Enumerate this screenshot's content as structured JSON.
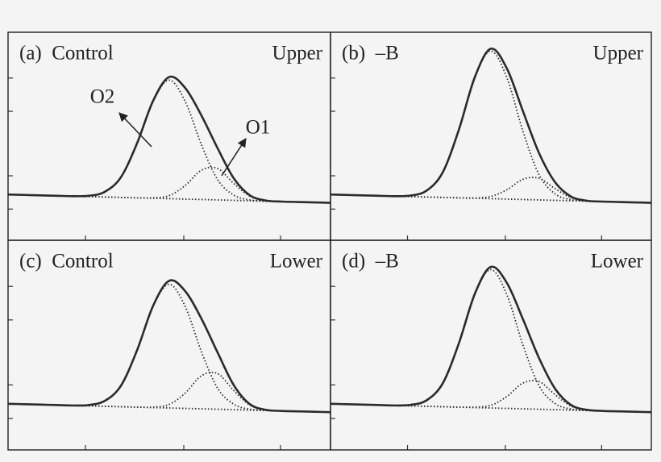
{
  "chart_data": [
    {
      "type": "line",
      "label": "(a)  Control",
      "position": "Upper",
      "annotations": [
        "O2",
        "O1"
      ],
      "x": [
        0,
        5,
        10,
        15,
        20,
        25,
        30,
        35,
        40,
        45,
        50,
        55,
        60,
        65,
        70,
        75,
        80,
        85,
        90,
        95,
        100
      ],
      "xlim": [
        0,
        100
      ],
      "ylim": [
        0,
        100
      ],
      "xticks": [
        24,
        54.5,
        84.5
      ],
      "yticks": [
        15,
        31,
        62,
        78
      ],
      "series": [
        {
          "color": "#2a2a2a",
          "style": "solid",
          "values": [
            22,
            21.8,
            21.6,
            21.4,
            21.2,
            21.4,
            23.3,
            30.3,
            46.6,
            67.1,
            78.5,
            73.1,
            59.9,
            44.2,
            29.8,
            21.6,
            19.1,
            18.6,
            18.4,
            18.2,
            18
          ]
        },
        {
          "color": "#2a2a2a",
          "style": "dotted",
          "values": [
            22,
            21.8,
            21.6,
            21.4,
            21.2,
            21.4,
            23.3,
            30.3,
            46.6,
            66.9,
            77,
            66.5,
            45.8,
            29.1,
            21.7,
            19.4,
            18.8,
            18.6,
            18.4,
            18.2,
            18
          ]
        },
        {
          "color": "#2a2a2a",
          "style": "dotted",
          "values": [
            22,
            21.8,
            21.6,
            21.4,
            21.2,
            21,
            20.8,
            20.6,
            20.4,
            20.4,
            21.5,
            26.4,
            33.7,
            34.5,
            27.3,
            21.2,
            19.1,
            18.6,
            18.4,
            18.2,
            18
          ]
        },
        {
          "color": "#2a2a2a",
          "style": "dotted",
          "values": [
            22,
            21.8,
            21.6,
            21.4,
            21.2,
            21,
            20.8,
            20.6,
            20.4,
            20.2,
            20,
            19.8,
            19.6,
            19.4,
            19.2,
            19,
            18.8,
            18.6,
            18.4,
            18.2,
            18
          ]
        }
      ]
    },
    {
      "type": "line",
      "label": "(b)  –B",
      "position": "Upper",
      "x": [
        0,
        5,
        10,
        15,
        20,
        25,
        30,
        35,
        40,
        45,
        50,
        55,
        60,
        65,
        70,
        75,
        80,
        85,
        90,
        95,
        100
      ],
      "xlim": [
        0,
        100
      ],
      "ylim": [
        0,
        100
      ],
      "xticks": [
        24,
        54.5,
        84.5
      ],
      "yticks": [
        15,
        31,
        62,
        78
      ],
      "series": [
        {
          "color": "#2a2a2a",
          "style": "solid",
          "values": [
            22,
            21.8,
            21.6,
            21.4,
            21.2,
            21.5,
            23.9,
            32.7,
            53.1,
            78.5,
            92.1,
            82.5,
            62,
            41.9,
            27.9,
            21,
            19,
            18.6,
            18.4,
            18.2,
            18
          ]
        },
        {
          "color": "#2a2a2a",
          "style": "dotted",
          "values": [
            22,
            21.8,
            21.6,
            21.4,
            21.2,
            21.5,
            23.9,
            32.7,
            53.1,
            78.4,
            91,
            78,
            52.3,
            31.5,
            22.3,
            19.5,
            18.8,
            18.6,
            18.4,
            18.2,
            18
          ]
        },
        {
          "color": "#2a2a2a",
          "style": "dotted",
          "values": [
            22,
            21.8,
            21.6,
            21.4,
            21.2,
            21,
            20.8,
            20.6,
            20.4,
            20.3,
            21.1,
            24.3,
            29.3,
            29.8,
            24.8,
            20.5,
            19,
            18.6,
            18.4,
            18.2,
            18
          ]
        },
        {
          "color": "#2a2a2a",
          "style": "dotted",
          "values": [
            22,
            21.8,
            21.6,
            21.4,
            21.2,
            21,
            20.8,
            20.6,
            20.4,
            20.2,
            20,
            19.8,
            19.6,
            19.4,
            19.2,
            19,
            18.8,
            18.6,
            18.4,
            18.2,
            18
          ]
        }
      ]
    },
    {
      "type": "line",
      "label": "(c)  Control",
      "position": "Lower",
      "x": [
        0,
        5,
        10,
        15,
        20,
        25,
        30,
        35,
        40,
        45,
        50,
        55,
        60,
        65,
        70,
        75,
        80,
        85,
        90,
        95,
        100
      ],
      "xlim": [
        0,
        100
      ],
      "ylim": [
        0,
        100
      ],
      "xticks": [
        24,
        54.5,
        84.5
      ],
      "yticks": [
        15,
        31,
        62,
        78
      ],
      "series": [
        {
          "color": "#2a2a2a",
          "style": "solid",
          "values": [
            22,
            21.8,
            21.6,
            21.4,
            21.2,
            21.4,
            23.4,
            30.6,
            47.5,
            68.8,
            80.7,
            75.6,
            62.5,
            46.4,
            30.9,
            21.8,
            19.1,
            18.6,
            18.4,
            18.2,
            18
          ]
        },
        {
          "color": "#2a2a2a",
          "style": "dotted",
          "values": [
            22,
            21.8,
            21.6,
            21.4,
            21.2,
            21.4,
            23.4,
            30.6,
            47.5,
            68.6,
            79,
            68.2,
            46.7,
            29.4,
            21.8,
            19.4,
            18.8,
            18.6,
            18.4,
            18.2,
            18
          ]
        },
        {
          "color": "#2a2a2a",
          "style": "dotted",
          "values": [
            22,
            21.8,
            21.6,
            21.4,
            21.2,
            21,
            20.8,
            20.6,
            20.4,
            20.4,
            21.7,
            27.2,
            35.4,
            36.4,
            28.3,
            21.4,
            19.1,
            18.6,
            18.4,
            18.2,
            18
          ]
        },
        {
          "color": "#2a2a2a",
          "style": "dotted",
          "values": [
            22,
            21.8,
            21.6,
            21.4,
            21.2,
            21,
            20.8,
            20.6,
            20.4,
            20.2,
            20,
            19.8,
            19.6,
            19.4,
            19.2,
            19,
            18.8,
            18.6,
            18.4,
            18.2,
            18
          ]
        }
      ]
    },
    {
      "type": "line",
      "label": "(d)  –B",
      "position": "Lower",
      "x": [
        0,
        5,
        10,
        15,
        20,
        25,
        30,
        35,
        40,
        45,
        50,
        55,
        60,
        65,
        70,
        75,
        80,
        85,
        90,
        95,
        100
      ],
      "xlim": [
        0,
        100
      ],
      "ylim": [
        0,
        100
      ],
      "xticks": [
        24,
        54.5,
        84.5
      ],
      "yticks": [
        15,
        31,
        62,
        78
      ],
      "series": [
        {
          "color": "#2a2a2a",
          "style": "solid",
          "values": [
            22,
            21.8,
            21.6,
            21.4,
            21.2,
            21.5,
            23.7,
            31.8,
            50.8,
            74.5,
            87.3,
            79.6,
            62.3,
            43.8,
            29.2,
            21.4,
            19.1,
            18.6,
            18.4,
            18.2,
            18
          ]
        },
        {
          "color": "#2a2a2a",
          "style": "dotted",
          "values": [
            22,
            21.8,
            21.6,
            21.4,
            21.2,
            21.5,
            23.7,
            31.8,
            50.8,
            74.3,
            86,
            73.9,
            50,
            30.6,
            22.1,
            19.5,
            18.8,
            18.6,
            18.4,
            18.2,
            18
          ]
        },
        {
          "color": "#2a2a2a",
          "style": "dotted",
          "values": [
            22,
            21.8,
            21.6,
            21.4,
            21.2,
            21,
            20.8,
            20.6,
            20.4,
            20.4,
            21.3,
            25.5,
            31.9,
            32.6,
            26.3,
            20.9,
            19.1,
            18.6,
            18.4,
            18.2,
            18
          ]
        },
        {
          "color": "#2a2a2a",
          "style": "dotted",
          "values": [
            22,
            21.8,
            21.6,
            21.4,
            21.2,
            21,
            20.8,
            20.6,
            20.4,
            20.2,
            20,
            19.8,
            19.6,
            19.4,
            19.2,
            19,
            18.8,
            18.6,
            18.4,
            18.2,
            18
          ]
        }
      ]
    }
  ]
}
